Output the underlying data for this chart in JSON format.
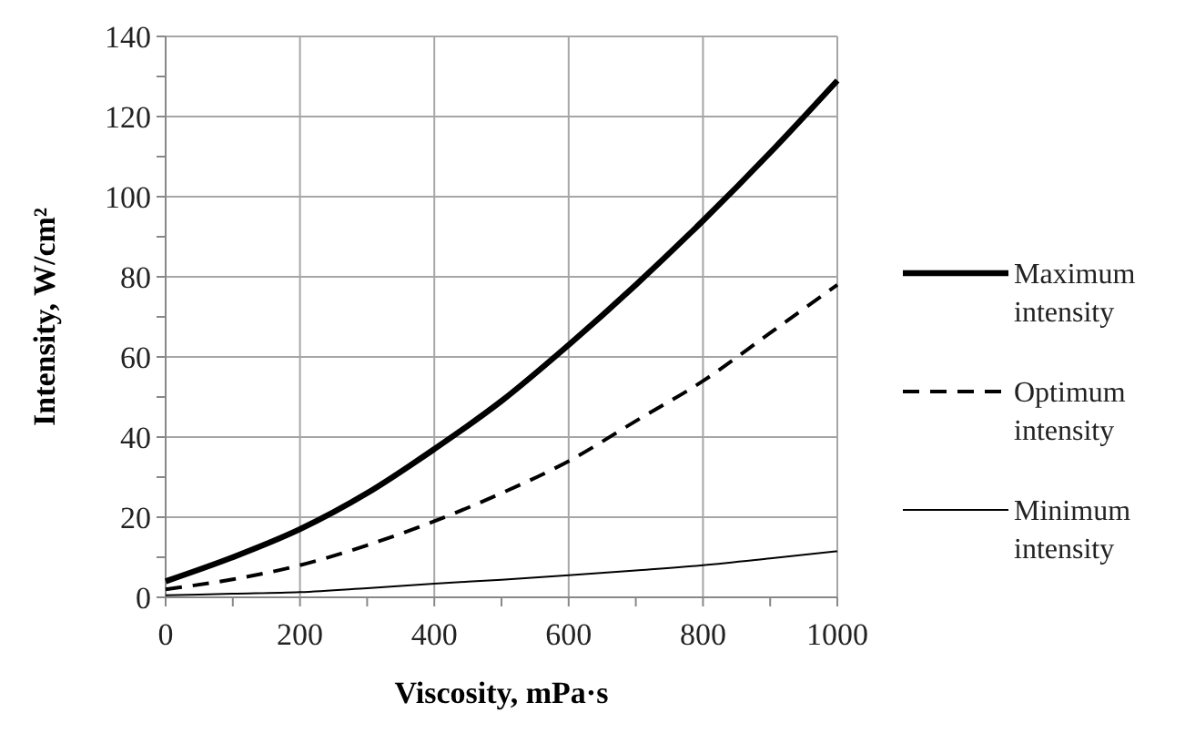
{
  "chart_data": {
    "type": "line",
    "xlabel": "Viscosity, mPa·s",
    "ylabel": "Intensity, W/cm²",
    "x": [
      0,
      100,
      200,
      300,
      400,
      500,
      600,
      700,
      800,
      900,
      1000
    ],
    "series": [
      {
        "name": "Maximum intensity",
        "color": "#000000",
        "line_style": "solid",
        "values": [
          4,
          10,
          17,
          26,
          37,
          49,
          63,
          78,
          94,
          111,
          129
        ]
      },
      {
        "name": "Optimum intensity",
        "color": "#000000",
        "line_style": "dashed",
        "values": [
          2,
          4.5,
          8,
          13,
          19,
          26,
          34,
          44,
          54,
          66,
          78
        ]
      },
      {
        "name": "Minimum intensity",
        "color": "#000000",
        "line_style": "solid",
        "values": [
          0.5,
          0.9,
          1.3,
          2.3,
          3.4,
          4.4,
          5.5,
          6.7,
          8,
          9.7,
          11.5
        ]
      }
    ],
    "xlim": [
      0,
      1000
    ],
    "ylim": [
      0,
      140
    ],
    "xticks": [
      0,
      {
        "value": 100,
        "label": null
      },
      200,
      {
        "value": 300,
        "label": null
      },
      400,
      {
        "value": 500,
        "label": null
      },
      600,
      {
        "value": 700,
        "label": null
      },
      800,
      {
        "value": 900,
        "label": null
      },
      1000
    ],
    "yticks": [
      0,
      {
        "value": 10,
        "label": null
      },
      20,
      {
        "value": 30,
        "label": null
      },
      40,
      {
        "value": 50,
        "label": null
      },
      60,
      {
        "value": 70,
        "label": null
      },
      80,
      {
        "value": 90,
        "label": null
      },
      100,
      {
        "value": 110,
        "label": null
      },
      120,
      {
        "value": 130,
        "label": null
      },
      140
    ],
    "grid": true,
    "legend": "right"
  }
}
